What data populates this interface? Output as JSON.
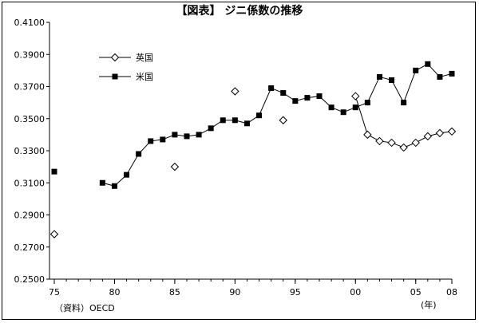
{
  "chart_data": {
    "type": "line",
    "title": "【図表】 ジニ係数の推移",
    "source_note": "（資料）OECD",
    "x_unit": "(年)",
    "xlabel": "",
    "ylabel": "",
    "xlim": [
      1975,
      2008
    ],
    "ylim": [
      0.25,
      0.41
    ],
    "x_ticks": [
      1975,
      1980,
      1985,
      1990,
      1995,
      2000,
      2005,
      2008
    ],
    "x_tick_labels": [
      "75",
      "80",
      "85",
      "90",
      "95",
      "00",
      "05",
      "08"
    ],
    "y_ticks": [
      0.25,
      0.27,
      0.29,
      0.31,
      0.33,
      0.35,
      0.37,
      0.39,
      0.41
    ],
    "y_tick_labels": [
      "0.2500",
      "0.2700",
      "0.2900",
      "0.3100",
      "0.3300",
      "0.3500",
      "0.3700",
      "0.3900",
      "0.4100"
    ],
    "grid": false,
    "legend_position": "top-left",
    "series": [
      {
        "name": "英国",
        "marker": "open-diamond",
        "color": "#000000",
        "points": [
          {
            "x": 1975,
            "y": 0.278
          },
          {
            "x": 1985,
            "y": 0.32
          },
          {
            "x": 1990,
            "y": 0.367
          },
          {
            "x": 1994,
            "y": 0.349
          },
          {
            "x": 2000,
            "y": 0.364
          },
          {
            "x": 2001,
            "y": 0.34
          },
          {
            "x": 2002,
            "y": 0.336
          },
          {
            "x": 2003,
            "y": 0.335
          },
          {
            "x": 2004,
            "y": 0.332
          },
          {
            "x": 2005,
            "y": 0.335
          },
          {
            "x": 2006,
            "y": 0.339
          },
          {
            "x": 2007,
            "y": 0.341
          },
          {
            "x": 2008,
            "y": 0.342
          }
        ],
        "line_segments": [
          [
            2000,
            2008
          ]
        ]
      },
      {
        "name": "米国",
        "marker": "filled-square",
        "color": "#000000",
        "points": [
          {
            "x": 1975,
            "y": 0.317
          },
          {
            "x": 1979,
            "y": 0.31
          },
          {
            "x": 1980,
            "y": 0.308
          },
          {
            "x": 1981,
            "y": 0.315
          },
          {
            "x": 1982,
            "y": 0.328
          },
          {
            "x": 1983,
            "y": 0.336
          },
          {
            "x": 1984,
            "y": 0.337
          },
          {
            "x": 1985,
            "y": 0.34
          },
          {
            "x": 1986,
            "y": 0.339
          },
          {
            "x": 1987,
            "y": 0.34
          },
          {
            "x": 1988,
            "y": 0.344
          },
          {
            "x": 1989,
            "y": 0.349
          },
          {
            "x": 1990,
            "y": 0.349
          },
          {
            "x": 1991,
            "y": 0.347
          },
          {
            "x": 1992,
            "y": 0.352
          },
          {
            "x": 1993,
            "y": 0.369
          },
          {
            "x": 1994,
            "y": 0.366
          },
          {
            "x": 1995,
            "y": 0.361
          },
          {
            "x": 1996,
            "y": 0.363
          },
          {
            "x": 1997,
            "y": 0.364
          },
          {
            "x": 1998,
            "y": 0.357
          },
          {
            "x": 1999,
            "y": 0.354
          },
          {
            "x": 2000,
            "y": 0.357
          },
          {
            "x": 2001,
            "y": 0.36
          },
          {
            "x": 2002,
            "y": 0.376
          },
          {
            "x": 2003,
            "y": 0.374
          },
          {
            "x": 2004,
            "y": 0.36
          },
          {
            "x": 2005,
            "y": 0.38
          },
          {
            "x": 2006,
            "y": 0.384
          },
          {
            "x": 2007,
            "y": 0.376
          },
          {
            "x": 2008,
            "y": 0.378
          }
        ],
        "line_segments": [
          [
            1979,
            2008
          ]
        ]
      }
    ]
  }
}
